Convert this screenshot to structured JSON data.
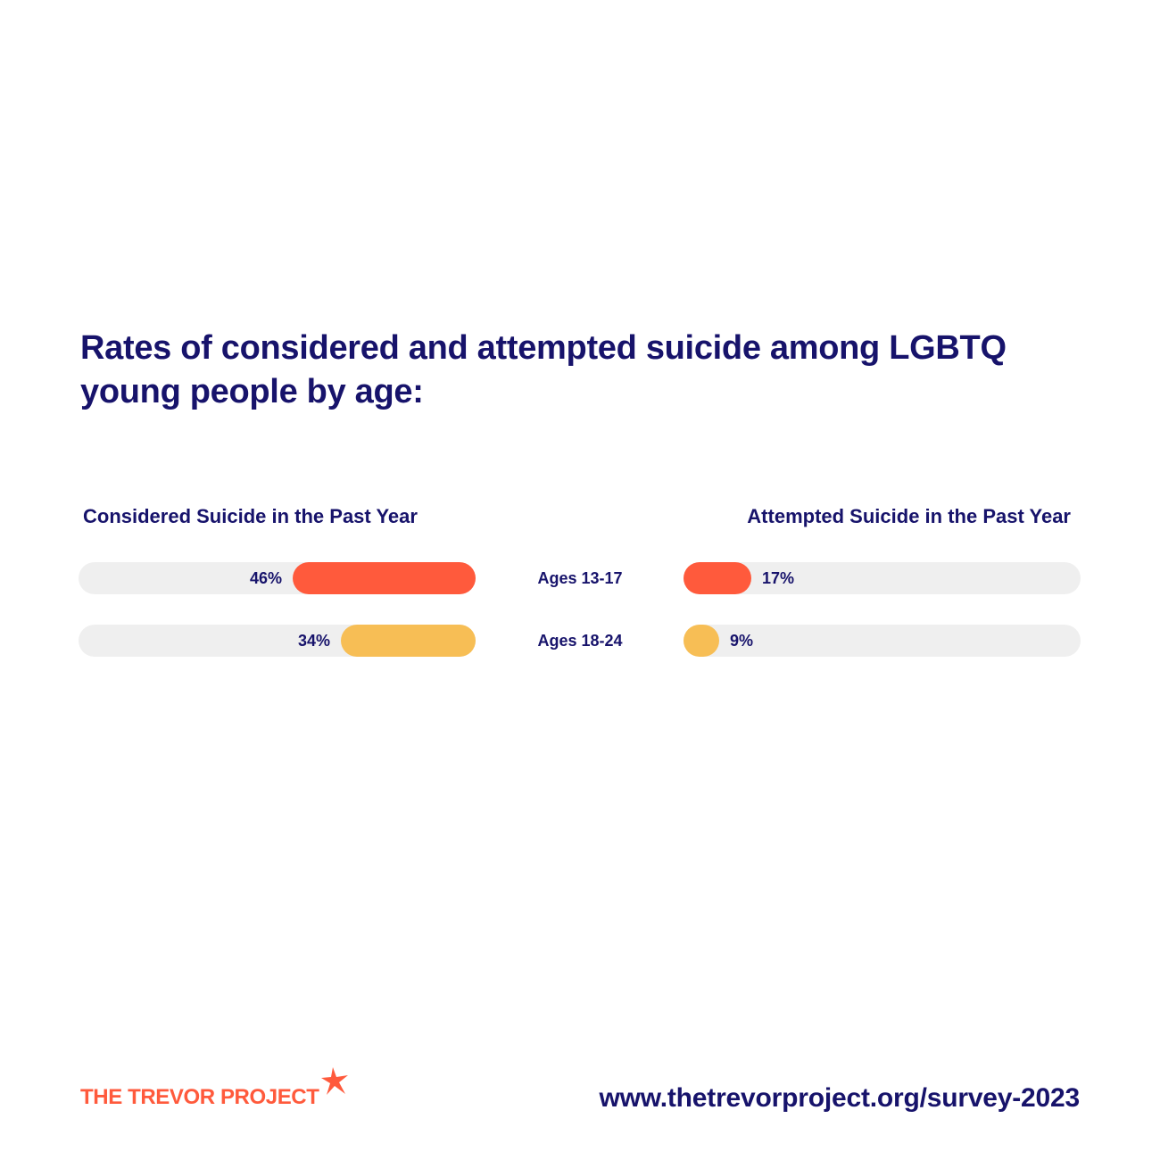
{
  "title": "Rates of considered and attempted suicide among LGBTQ young people by age:",
  "brand": {
    "name": "THE TREVOR PROJECT",
    "color": "#ff5a3c"
  },
  "url": "www.thetrevorproject.org/survey-2023",
  "colors": {
    "text": "#17136b",
    "track": "#efefef",
    "ages_13_17": "#ff5a3c",
    "ages_18_24": "#f7be55"
  },
  "chart_data": [
    {
      "type": "bar",
      "orientation": "horizontal",
      "direction": "right-to-left",
      "title": "Considered Suicide in the Past Year",
      "categories": [
        "Ages 13-17",
        "Ages 18-24"
      ],
      "values": [
        46,
        34
      ],
      "labels": [
        "46%",
        "34%"
      ],
      "unit": "%",
      "xlim": [
        0,
        100
      ]
    },
    {
      "type": "bar",
      "orientation": "horizontal",
      "direction": "left-to-right",
      "title": "Attempted Suicide in the Past Year",
      "categories": [
        "Ages 13-17",
        "Ages 18-24"
      ],
      "values": [
        17,
        9
      ],
      "labels": [
        "17%",
        "9%"
      ],
      "unit": "%",
      "xlim": [
        0,
        100
      ]
    }
  ]
}
